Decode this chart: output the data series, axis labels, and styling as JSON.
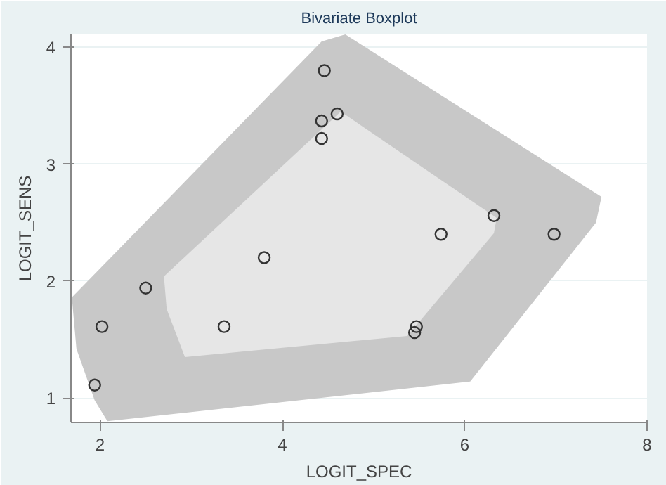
{
  "chart_data": {
    "type": "scatter",
    "title": "Bivariate Boxplot",
    "xlabel": "LOGIT_SPEC",
    "ylabel": "LOGIT_SENS",
    "xlim": [
      1.68,
      8
    ],
    "ylim": [
      0.79,
      4.11
    ],
    "xticks": [
      2,
      4,
      6,
      8
    ],
    "yticks": [
      1,
      2,
      3,
      4
    ],
    "grid": "y",
    "series": [
      {
        "type": "area",
        "color": "#c8c8c8",
        "x": [
          1.69,
          1.74,
          1.94,
          2.08,
          6.06,
          7.44,
          7.5,
          4.69,
          4.43
        ],
        "values": [
          1.86,
          1.42,
          0.98,
          0.8,
          1.14,
          2.5,
          2.72,
          4.11,
          4.05
        ]
      },
      {
        "type": "area",
        "color": "#e6e6e6",
        "x": [
          2.7,
          2.73,
          2.93,
          5.37,
          6.32,
          6.35,
          4.64
        ],
        "values": [
          2.04,
          1.76,
          1.35,
          1.53,
          2.41,
          2.54,
          3.45
        ]
      },
      {
        "marker": "circle",
        "color": "#333333",
        "x": [
          4.46,
          4.6,
          4.43,
          4.43,
          3.8,
          2.5,
          2.02,
          3.36,
          1.94,
          5.74,
          6.32,
          6.98,
          5.47,
          5.45
        ],
        "values": [
          3.8,
          3.43,
          3.37,
          3.22,
          2.2,
          1.94,
          1.61,
          1.61,
          1.11,
          2.4,
          2.56,
          2.4,
          1.61,
          1.56
        ]
      }
    ]
  }
}
